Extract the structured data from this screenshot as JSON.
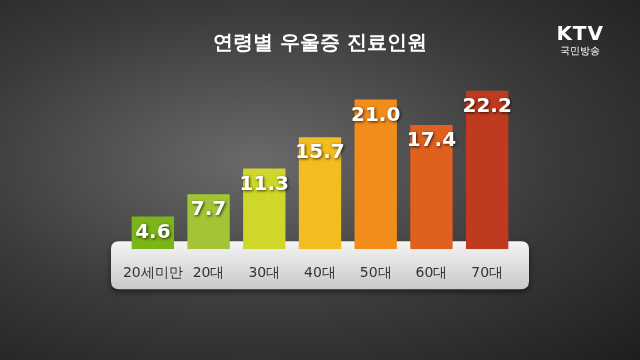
{
  "chart_data": {
    "type": "bar",
    "title": "연령별 우울증 진료인원",
    "categories": [
      "20세미만",
      "20대",
      "30대",
      "40대",
      "50대",
      "60대",
      "70대"
    ],
    "values": [
      4.6,
      7.7,
      11.3,
      15.7,
      21.0,
      17.4,
      22.2
    ],
    "value_labels": [
      "4.6",
      "7.7",
      "11.3",
      "15.7",
      "21.0",
      "17.4",
      "22.2"
    ],
    "colors": [
      "#7cb518",
      "#a3c535",
      "#cfd82a",
      "#f4bd1f",
      "#f28c1b",
      "#e0601e",
      "#bf3a1f"
    ],
    "ylim": [
      0,
      24
    ],
    "grid": false,
    "data_labels": true,
    "tick_labels": "x",
    "annotations": [
      "KTV",
      "국민방송"
    ]
  }
}
